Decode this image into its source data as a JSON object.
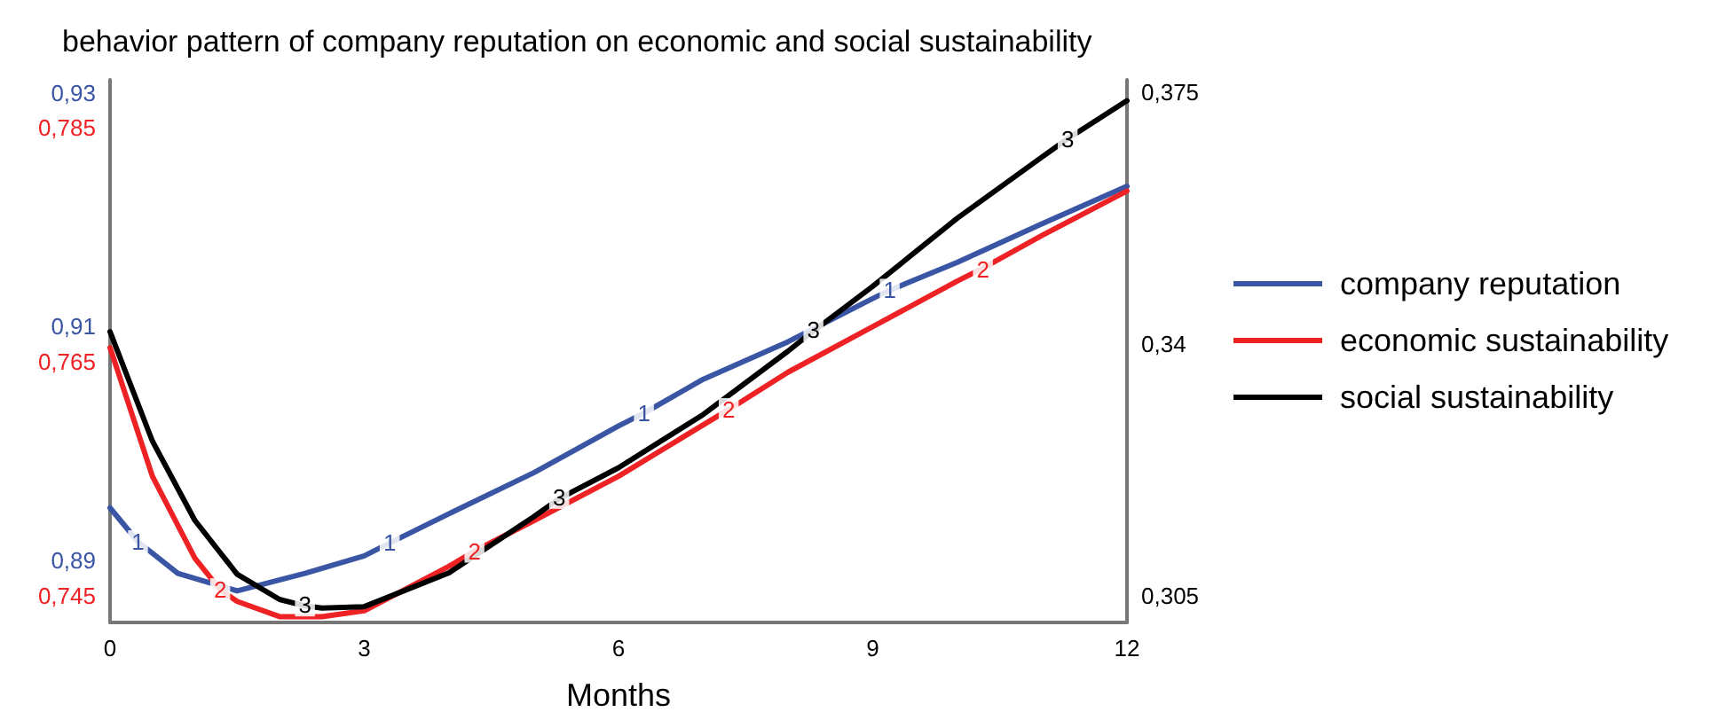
{
  "chart_data": {
    "type": "line",
    "title": "behavior pattern of company reputation on economic and social sustainability",
    "xlabel": "Months",
    "xlim": [
      0,
      12
    ],
    "xticks": [
      0,
      3,
      6,
      9,
      12
    ],
    "ylim": [
      0.8847,
      0.9311
    ],
    "yticks": [
      {
        "value": 0.89,
        "label": "0,89"
      },
      {
        "value": 0.91,
        "label": "0,91"
      },
      {
        "value": 0.93,
        "label": "0,93"
      }
    ],
    "y2lim": [
      0.7427,
      0.7891
    ],
    "y2ticks": [
      {
        "value": 0.745,
        "label": "0,745"
      },
      {
        "value": 0.765,
        "label": "0,765"
      },
      {
        "value": 0.785,
        "label": "0,785"
      }
    ],
    "y3lim": [
      0.3013,
      0.3767
    ],
    "y3ticks": [
      {
        "value": 0.305,
        "label": "0,305"
      },
      {
        "value": 0.34,
        "label": "0,34"
      },
      {
        "value": 0.375,
        "label": "0,375"
      }
    ],
    "legend": "right",
    "annotations": [
      {
        "text": "1",
        "x": 0.33,
        "y": 0.8916
      },
      {
        "text": "1",
        "x": 3.3,
        "y": 0.8915
      },
      {
        "text": "1",
        "x": 6.3,
        "y": 0.9026
      },
      {
        "text": "1",
        "x": 9.2,
        "y": 0.9131
      },
      {
        "text": "2",
        "x": 1.3,
        "y": 0.8875
      },
      {
        "text": "2",
        "x": 4.3,
        "y": 0.8908
      },
      {
        "text": "2",
        "x": 7.3,
        "y": 0.9029
      },
      {
        "text": "2",
        "x": 10.3,
        "y": 0.9149
      },
      {
        "text": "3",
        "x": 2.3,
        "y": 0.8862
      },
      {
        "text": "3",
        "x": 5.3,
        "y": 0.8954
      },
      {
        "text": "3",
        "x": 8.3,
        "y": 0.9097
      },
      {
        "text": "3",
        "x": 11.3,
        "y": 0.926
      }
    ],
    "series": [
      {
        "name": "company reputation",
        "color": "#3a55a4",
        "axis": "y",
        "x": [
          0,
          0.33,
          0.8,
          1.5,
          2.3,
          3,
          3.3,
          4,
          5,
          6,
          6.3,
          7,
          8,
          9,
          9.2,
          10,
          11,
          12
        ],
        "values": [
          0.8945,
          0.8916,
          0.8889,
          0.8874,
          0.8889,
          0.8904,
          0.8915,
          0.894,
          0.8975,
          0.9015,
          0.9026,
          0.9055,
          0.9087,
          0.9124,
          0.9131,
          0.9155,
          0.9188,
          0.922
        ]
      },
      {
        "name": "economic sustainability",
        "color": "#ee2224",
        "axis": "y2",
        "x": [
          0,
          0.5,
          1,
          1.3,
          1.5,
          2,
          2.5,
          3,
          4,
          4.3,
          5,
          6,
          7,
          7.3,
          8,
          9,
          10,
          10.3,
          11,
          12
        ],
        "values": [
          0.7662,
          0.7552,
          0.7482,
          0.7455,
          0.7445,
          0.7432,
          0.7432,
          0.7437,
          0.7475,
          0.7488,
          0.7514,
          0.7552,
          0.7596,
          0.7609,
          0.7641,
          0.768,
          0.7719,
          0.773,
          0.7758,
          0.7796
        ]
      },
      {
        "name": "social sustainability",
        "color": "#000000",
        "axis": "y3",
        "x": [
          0,
          0.5,
          1,
          1.5,
          2,
          2.3,
          2.5,
          3,
          4,
          5,
          5.3,
          6,
          7,
          8,
          8.3,
          9,
          10,
          11,
          11.3,
          12
        ],
        "values": [
          0.3417,
          0.3265,
          0.3155,
          0.308,
          0.3045,
          0.3036,
          0.3033,
          0.3035,
          0.3082,
          0.316,
          0.3185,
          0.3228,
          0.3302,
          0.339,
          0.3418,
          0.348,
          0.3575,
          0.366,
          0.3685,
          0.3738
        ]
      }
    ]
  }
}
